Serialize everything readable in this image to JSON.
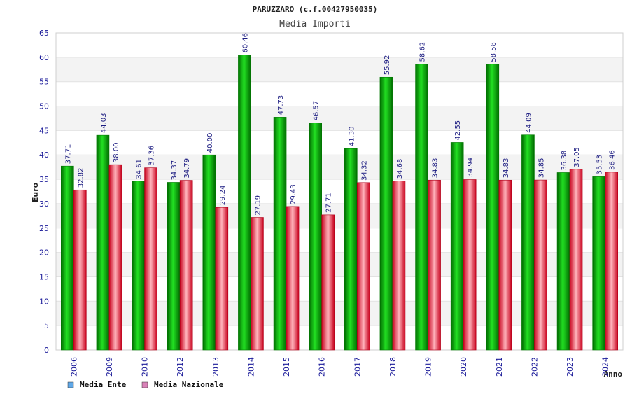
{
  "chart_data": {
    "type": "bar",
    "title": "PARUZZARO (c.f.00427950035)",
    "subtitle": "Media Importi",
    "ylabel": "Euro",
    "xlabel": "Anno",
    "ylim": [
      0,
      65
    ],
    "yticks": [
      0,
      5,
      10,
      15,
      20,
      25,
      30,
      35,
      40,
      45,
      50,
      55,
      60,
      65
    ],
    "grid": true,
    "legend_position": "bottom-left",
    "categories": [
      "2006",
      "2009",
      "2010",
      "2012",
      "2013",
      "2014",
      "2015",
      "2016",
      "2017",
      "2018",
      "2019",
      "2020",
      "2021",
      "2022",
      "2023",
      "2024"
    ],
    "series": [
      {
        "name": "Media Ente",
        "color": "#00c000",
        "values": [
          37.71,
          44.03,
          34.61,
          34.37,
          40.0,
          60.46,
          47.73,
          46.57,
          41.3,
          55.92,
          58.62,
          42.55,
          58.58,
          44.09,
          36.38,
          35.53
        ],
        "labels": [
          "37.71",
          "44.03",
          "34.61",
          "34.37",
          "40.00",
          "60.46",
          "47.73",
          "46.57",
          "41.30",
          "55.92",
          "58.62",
          "42.55",
          "58.58",
          "44.09",
          "36.38",
          "35.53"
        ]
      },
      {
        "name": "Media Nazionale",
        "color": "#e8102a",
        "values": [
          32.82,
          38.0,
          37.36,
          34.79,
          29.24,
          27.19,
          29.43,
          27.71,
          34.32,
          34.68,
          34.83,
          34.94,
          34.83,
          34.85,
          37.05,
          36.46
        ],
        "labels": [
          "32.82",
          "38.00",
          "37.36",
          "34.79",
          "29.24",
          "27.19",
          "29.43",
          "27.71",
          "34.32",
          "34.68",
          "34.83",
          "34.94",
          "34.83",
          "34.85",
          "37.05",
          "36.46"
        ]
      }
    ],
    "legend_swatch_colors": [
      "#5fa8e8",
      "#d982b8"
    ]
  }
}
